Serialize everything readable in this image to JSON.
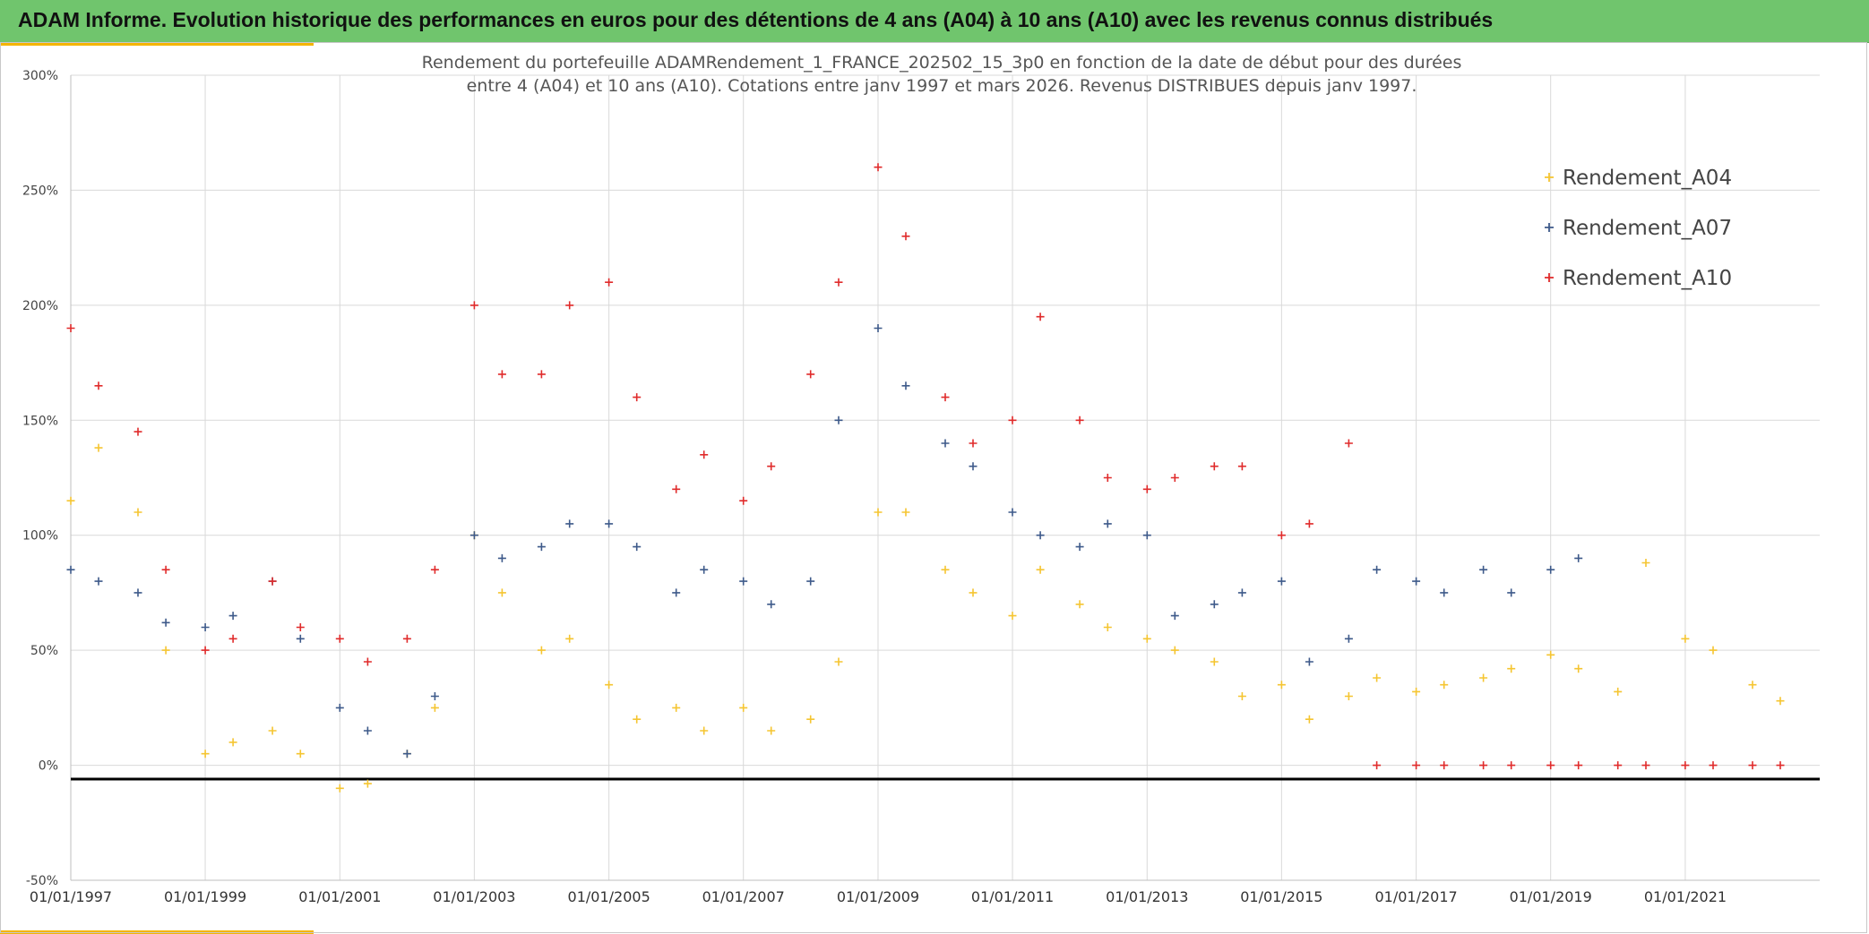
{
  "header": {
    "title": "ADAM Informe. Evolution historique des performances en euros pour des détentions de 4 ans (A04) à 10 ans (A10) avec les revenus connus distribués"
  },
  "colors": {
    "header_bg": "#70c56d",
    "accent": "#f4b400",
    "A04": "#f5c531",
    "A07": "#3e5a8a",
    "A10": "#e02b2b",
    "baseline": "#000000"
  },
  "chart_data": {
    "type": "scatter",
    "title_lines": [
      "Rendement du portefeuille ADAMRendement_1_FRANCE_202502_15_3p0  en fonction de la date de début pour des durées",
      "entre 4 (A04) et 10 ans (A10). Cotations entre janv 1997 et mars 2026. Revenus DISTRIBUES depuis janv 1997."
    ],
    "x_range": [
      "1997-01-01",
      "2023-01-01"
    ],
    "x_ticks": [
      "01/01/1997",
      "01/01/1999",
      "01/01/2001",
      "01/01/2003",
      "01/01/2005",
      "01/01/2007",
      "01/01/2009",
      "01/01/2011",
      "01/01/2013",
      "01/01/2015",
      "01/01/2017",
      "01/01/2019",
      "01/01/2021"
    ],
    "y_range": [
      -0.5,
      3.0
    ],
    "y_ticks": [
      "300%",
      "250%",
      "200%",
      "150%",
      "100%",
      "50%",
      "0%",
      "-50%"
    ],
    "grid": true,
    "legend_position": "top-right",
    "marker": "+",
    "reference_line_y": -0.06,
    "series": [
      {
        "name": "Rendement_A04",
        "x": [
          "1997-01",
          "1997-06",
          "1998-01",
          "1998-06",
          "1999-01",
          "1999-06",
          "2000-01",
          "2000-06",
          "2001-01",
          "2001-06",
          "2002-01",
          "2002-06",
          "2003-01",
          "2003-06",
          "2004-01",
          "2004-06",
          "2005-01",
          "2005-06",
          "2006-01",
          "2006-06",
          "2007-01",
          "2007-06",
          "2008-01",
          "2008-06",
          "2009-01",
          "2009-06",
          "2010-01",
          "2010-06",
          "2011-01",
          "2011-06",
          "2012-01",
          "2012-06",
          "2013-01",
          "2013-06",
          "2014-01",
          "2014-06",
          "2015-01",
          "2015-06",
          "2016-01",
          "2016-06",
          "2017-01",
          "2017-06",
          "2018-01",
          "2018-06",
          "2019-01",
          "2019-06",
          "2020-01",
          "2020-06",
          "2021-01",
          "2021-06",
          "2022-01",
          "2022-06"
        ],
        "values": [
          1.15,
          1.38,
          1.1,
          0.5,
          0.05,
          0.1,
          0.15,
          0.05,
          -0.1,
          -0.08,
          0.05,
          0.25,
          1.0,
          0.75,
          0.5,
          0.55,
          0.35,
          0.2,
          0.25,
          0.15,
          0.25,
          0.15,
          0.2,
          0.45,
          1.1,
          1.1,
          0.85,
          0.75,
          0.65,
          0.85,
          0.7,
          0.6,
          0.55,
          0.5,
          0.45,
          0.3,
          0.35,
          0.2,
          0.3,
          0.38,
          0.32,
          0.35,
          0.38,
          0.42,
          0.48,
          0.42,
          0.32,
          0.88,
          0.55,
          0.5,
          0.35,
          0.28
        ]
      },
      {
        "name": "Rendement_A07",
        "x": [
          "1997-01",
          "1997-06",
          "1998-01",
          "1998-06",
          "1999-01",
          "1999-06",
          "2000-01",
          "2000-06",
          "2001-01",
          "2001-06",
          "2002-01",
          "2002-06",
          "2003-01",
          "2003-06",
          "2004-01",
          "2004-06",
          "2005-01",
          "2005-06",
          "2006-01",
          "2006-06",
          "2007-01",
          "2007-06",
          "2008-01",
          "2008-06",
          "2009-01",
          "2009-06",
          "2010-01",
          "2010-06",
          "2011-01",
          "2011-06",
          "2012-01",
          "2012-06",
          "2013-01",
          "2013-06",
          "2014-01",
          "2014-06",
          "2015-01",
          "2015-06",
          "2016-01",
          "2016-06",
          "2017-01",
          "2017-06",
          "2018-01",
          "2018-06",
          "2019-01",
          "2019-06"
        ],
        "values": [
          0.85,
          0.8,
          0.75,
          0.62,
          0.6,
          0.65,
          0.8,
          0.55,
          0.25,
          0.15,
          0.05,
          0.3,
          1.0,
          0.9,
          0.95,
          1.05,
          1.05,
          0.95,
          0.75,
          0.85,
          0.8,
          0.7,
          0.8,
          1.5,
          1.9,
          1.65,
          1.4,
          1.3,
          1.1,
          1.0,
          0.95,
          1.05,
          1.0,
          0.65,
          0.7,
          0.75,
          0.8,
          0.45,
          0.55,
          0.85,
          0.8,
          0.75,
          0.85,
          0.75,
          0.85,
          0.9
        ]
      },
      {
        "name": "Rendement_A10",
        "x": [
          "1997-01",
          "1997-06",
          "1998-01",
          "1998-06",
          "1999-01",
          "1999-06",
          "2000-01",
          "2000-06",
          "2001-01",
          "2001-06",
          "2002-01",
          "2002-06",
          "2003-01",
          "2003-06",
          "2004-01",
          "2004-06",
          "2005-01",
          "2005-06",
          "2006-01",
          "2006-06",
          "2007-01",
          "2007-06",
          "2008-01",
          "2008-06",
          "2009-01",
          "2009-06",
          "2010-01",
          "2010-06",
          "2011-01",
          "2011-06",
          "2012-01",
          "2012-06",
          "2013-01",
          "2013-06",
          "2014-01",
          "2014-06",
          "2015-01",
          "2015-06",
          "2016-01",
          "2016-06",
          "2017-01",
          "2017-06",
          "2018-01",
          "2018-06",
          "2019-01",
          "2019-06",
          "2020-01",
          "2020-06",
          "2021-01",
          "2021-06",
          "2022-01",
          "2022-06"
        ],
        "values": [
          1.9,
          1.65,
          1.45,
          0.85,
          0.5,
          0.55,
          0.8,
          0.6,
          0.55,
          0.45,
          0.55,
          0.85,
          2.0,
          1.7,
          1.7,
          2.0,
          2.1,
          1.6,
          1.2,
          1.35,
          1.15,
          1.3,
          1.7,
          2.1,
          2.6,
          2.3,
          1.6,
          1.4,
          1.5,
          1.95,
          1.5,
          1.25,
          1.2,
          1.25,
          1.3,
          1.3,
          1.0,
          1.05,
          1.4,
          0.0,
          0.0,
          0.0,
          0.0,
          0.0,
          0.0,
          0.0,
          0.0,
          0.0,
          0.0,
          0.0,
          0.0,
          0.0
        ]
      }
    ]
  }
}
